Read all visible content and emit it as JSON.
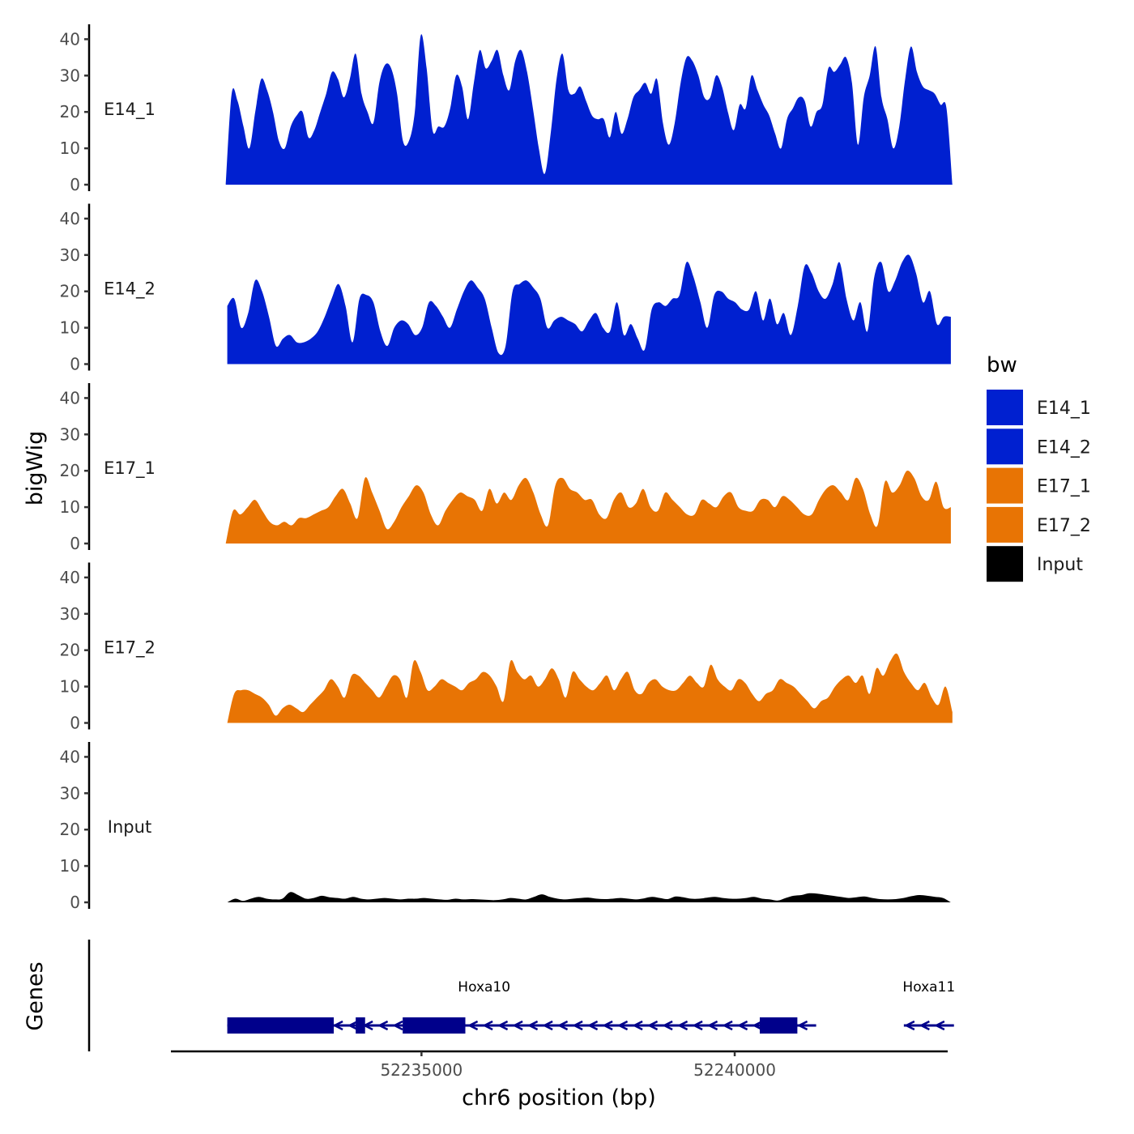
{
  "chart_data": {
    "type": "area",
    "title": "",
    "xlabel": "chr6 position (bp)",
    "ylabel": "bigWig",
    "genes_label": "Genes",
    "xlim": [
      52231000,
      52243400
    ],
    "x_ticks": [
      52235000,
      52240000
    ],
    "x_tick_labels": [
      "52235000",
      "52240000"
    ],
    "ylim": [
      0,
      45
    ],
    "y_ticks": [
      0,
      10,
      20,
      30,
      40
    ],
    "y_tick_labels": [
      "0",
      "10",
      "20",
      "30",
      "40"
    ],
    "legend": {
      "title": "bw",
      "position": "right",
      "entries": [
        {
          "label": "E14_1",
          "color": "#0020D0"
        },
        {
          "label": "E14_2",
          "color": "#0020D0"
        },
        {
          "label": "E17_1",
          "color": "#E87404"
        },
        {
          "label": "E17_2",
          "color": "#E87404"
        },
        {
          "label": "Input",
          "color": "#000000"
        }
      ]
    },
    "series": [
      {
        "name": "E14_1",
        "label": "E14_1",
        "color": "#0020D0",
        "x_start": 52231875,
        "x_end": 52243475,
        "values": [
          0,
          25,
          23,
          16,
          10,
          20,
          29,
          26,
          20,
          12,
          10,
          16,
          19,
          20,
          13,
          15,
          20,
          25,
          31,
          29,
          24,
          29,
          36,
          25,
          20,
          17,
          28,
          33,
          32,
          25,
          12,
          12,
          20,
          41,
          32,
          15,
          16,
          16,
          21,
          30,
          27,
          18,
          28,
          37,
          32,
          34,
          37,
          30,
          26,
          34,
          37,
          31,
          21,
          10,
          3,
          14,
          29,
          36,
          26,
          25,
          27,
          23,
          19,
          18,
          18,
          13,
          20,
          14,
          18,
          24,
          26,
          28,
          25,
          29,
          17,
          11,
          17,
          28,
          35,
          34,
          30,
          24,
          24,
          30,
          27,
          20,
          15,
          22,
          21,
          30,
          26,
          22,
          19,
          14,
          10,
          18,
          21,
          24,
          23,
          16,
          20,
          22,
          32,
          31,
          33,
          35,
          28,
          11,
          24,
          30,
          38,
          24,
          18,
          10,
          16,
          29,
          38,
          31,
          27,
          26,
          25,
          22,
          21,
          0
        ]
      },
      {
        "name": "E14_2",
        "label": "E14_2",
        "color": "#0020D0",
        "x_start": 52231900,
        "x_end": 52243450,
        "values": [
          16,
          18,
          10,
          14,
          23,
          20,
          13,
          5,
          7,
          8,
          6,
          6,
          7,
          9,
          13,
          18,
          22,
          16,
          6,
          18,
          19,
          17,
          9,
          5,
          10,
          12,
          11,
          8,
          10,
          17,
          16,
          13,
          10,
          15,
          20,
          23,
          21,
          18,
          10,
          3,
          5,
          20,
          22,
          23,
          21,
          18,
          10,
          12,
          13,
          12,
          11,
          9,
          12,
          14,
          10,
          9,
          17,
          8,
          11,
          7,
          4,
          15,
          17,
          16,
          18,
          19,
          28,
          24,
          17,
          10,
          19,
          20,
          18,
          17,
          15,
          15,
          20,
          12,
          18,
          11,
          14,
          8,
          16,
          27,
          25,
          20,
          18,
          22,
          28,
          18,
          12,
          17,
          9,
          24,
          28,
          20,
          23,
          28,
          30,
          25,
          17,
          20,
          11,
          13,
          13
        ]
      },
      {
        "name": "E17_1",
        "label": "E17_1",
        "color": "#E87404",
        "x_start": 52231875,
        "x_end": 52243450,
        "values": [
          0,
          9,
          8,
          10,
          12,
          9,
          6,
          5,
          6,
          5,
          7,
          7,
          8,
          9,
          10,
          13,
          15,
          11,
          7,
          18,
          14,
          9,
          4,
          6,
          10,
          13,
          16,
          14,
          8,
          5,
          9,
          12,
          14,
          13,
          12,
          9,
          15,
          11,
          14,
          12,
          16,
          18,
          14,
          8,
          5,
          16,
          18,
          15,
          14,
          12,
          12,
          8,
          7,
          12,
          14,
          10,
          11,
          15,
          10,
          9,
          14,
          12,
          10,
          8,
          8,
          12,
          11,
          10,
          13,
          14,
          10,
          9,
          9,
          12,
          12,
          10,
          13,
          12,
          10,
          8,
          8,
          12,
          15,
          16,
          14,
          12,
          18,
          15,
          8,
          5,
          17,
          14,
          16,
          20,
          18,
          13,
          12,
          17,
          10,
          10
        ]
      },
      {
        "name": "E17_2",
        "label": "E17_2",
        "color": "#E87404",
        "x_start": 52231900,
        "x_end": 52243475,
        "values": [
          0,
          8,
          9,
          9,
          8,
          7,
          5,
          2,
          4,
          5,
          4,
          3,
          5,
          7,
          9,
          12,
          10,
          7,
          13,
          13,
          11,
          9,
          7,
          10,
          13,
          12,
          7,
          17,
          14,
          9,
          10,
          12,
          11,
          10,
          9,
          11,
          12,
          14,
          13,
          10,
          6,
          17,
          14,
          12,
          13,
          10,
          12,
          15,
          12,
          7,
          14,
          12,
          10,
          9,
          11,
          13,
          9,
          12,
          14,
          9,
          8,
          11,
          12,
          10,
          9,
          9,
          11,
          13,
          11,
          10,
          16,
          12,
          10,
          9,
          12,
          11,
          8,
          6,
          8,
          9,
          12,
          11,
          10,
          8,
          6,
          4,
          6,
          7,
          10,
          12,
          13,
          11,
          13,
          8,
          15,
          13,
          17,
          19,
          14,
          11,
          9,
          11,
          7,
          5,
          10,
          3
        ]
      },
      {
        "name": "Input",
        "label": "Input",
        "color": "#000000",
        "x_start": 52231900,
        "x_end": 52243450,
        "values": [
          0,
          1,
          0.4,
          1,
          1.5,
          1,
          0.8,
          1,
          2.8,
          2,
          1,
          1.2,
          1.8,
          1.4,
          1.2,
          1,
          1.5,
          1,
          0.8,
          1,
          1.2,
          1,
          0.8,
          1,
          1,
          1.2,
          1,
          0.8,
          0.7,
          1,
          0.8,
          0.9,
          0.8,
          0.7,
          0.6,
          0.8,
          1.2,
          1,
          0.8,
          1.5,
          2.2,
          1.5,
          1,
          0.8,
          1,
          1.2,
          1.3,
          1,
          0.9,
          1,
          1.2,
          1,
          0.8,
          1.1,
          1.5,
          1.2,
          0.9,
          1.6,
          1.4,
          1,
          1,
          1.3,
          1.5,
          1.2,
          1,
          1,
          1.2,
          1.5,
          1,
          0.8,
          0.5,
          1.2,
          1.8,
          2,
          2.5,
          2.4,
          2.1,
          1.8,
          1.5,
          1.2,
          1.4,
          1.6,
          1.2,
          0.9,
          0.8,
          0.9,
          1.2,
          1.7,
          2,
          1.8,
          1.5,
          1.2,
          0
        ]
      }
    ],
    "genes": [
      {
        "name": "Hoxa10",
        "strand": "-",
        "start": 52231900,
        "end": 52241300,
        "label_x": 52236000,
        "exons": [
          {
            "start": 52231900,
            "end": 52233600
          },
          {
            "start": 52233950,
            "end": 52234100
          },
          {
            "start": 52234700,
            "end": 52235700
          },
          {
            "start": 52240400,
            "end": 52241000
          }
        ]
      },
      {
        "name": "Hoxa11",
        "strand": "-",
        "start": 52242700,
        "end": 52243500,
        "label_x": 52243100,
        "exons": []
      }
    ]
  }
}
